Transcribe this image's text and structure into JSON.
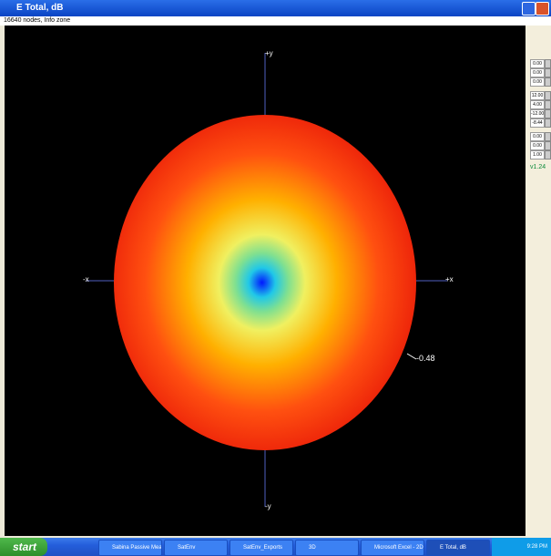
{
  "window": {
    "title": "E Total, dB",
    "status": "16640 nodes,  Info zone"
  },
  "viewport": {
    "axes": {
      "pos_y": "+y",
      "neg_x": "-x",
      "pos_x": "+x",
      "neg_y": "-y"
    },
    "annotation": "-0.48"
  },
  "side_panel": {
    "group1": [
      "0.00",
      "0.00",
      "0.00"
    ],
    "group2": [
      "12.00",
      "4.00",
      "-12.00",
      "-8.44"
    ],
    "group3": [
      "0.00",
      "0.00",
      "1.00"
    ],
    "version": "v1.24"
  },
  "taskbar": {
    "start": "start",
    "items": [
      "Sabina Passive Mea...",
      "SatEnv",
      "SatEnv_Exports",
      "3D",
      "Microsoft Excel - 2D...",
      "E Total, dB"
    ],
    "clock": "9:28 PM"
  }
}
